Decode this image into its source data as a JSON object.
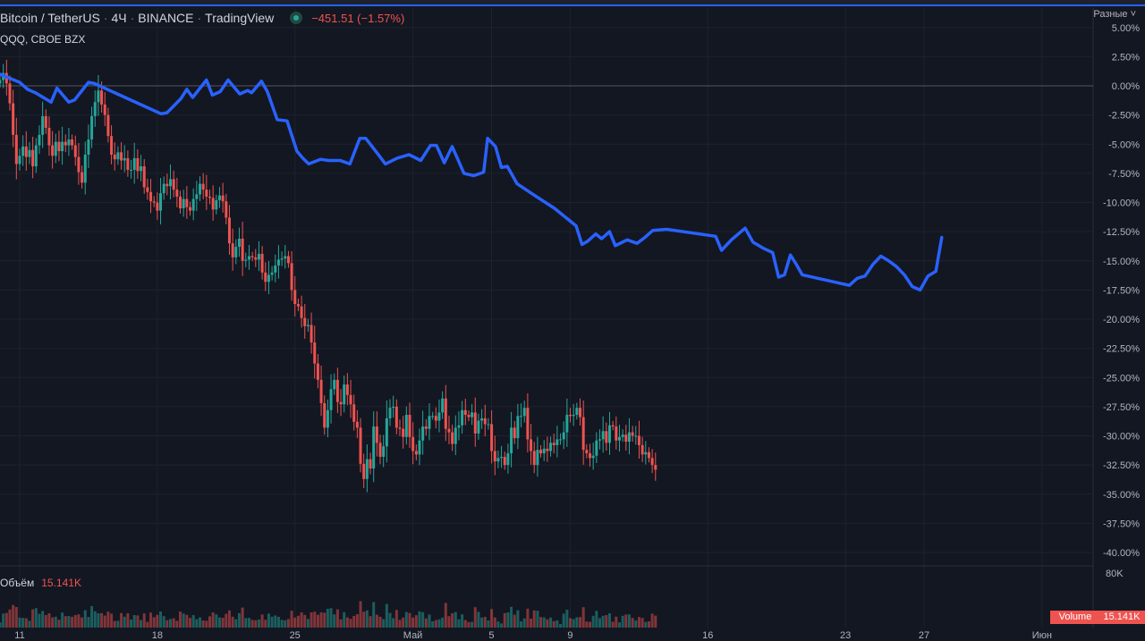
{
  "header": {
    "symbol": "Bitcoin / TetherUS",
    "interval": "4Ч",
    "exchange": "BINANCE",
    "source": "TradingView",
    "change": "−451.51 (−1.57%)",
    "compare": "QQQ, CBOE BZX",
    "scale_mode": "Разные ˅"
  },
  "volume": {
    "label": "Объём",
    "value": "15.141K",
    "pill_label": "Volume",
    "pill_value": "15.141K",
    "max_tick": "80K"
  },
  "colors": {
    "background": "#131722",
    "up": "#26a69a",
    "down": "#ef5350",
    "compare_line": "#2962ff",
    "grid": "#1e222d"
  },
  "chart_data": {
    "type": "line",
    "ylabel": "",
    "ylim": [
      -41,
      5.5
    ],
    "y_ticks": [
      "5.00%",
      "2.50%",
      "0.00%",
      "-2.50%",
      "-5.00%",
      "-7.50%",
      "-10.00%",
      "-12.50%",
      "-15.00%",
      "-17.50%",
      "-20.00%",
      "-22.50%",
      "-25.00%",
      "-27.50%",
      "-30.00%",
      "-32.50%",
      "-35.00%",
      "-37.50%",
      "-40.00%"
    ],
    "x_ticks": [
      "11",
      "18",
      "25",
      "Май",
      "5",
      "9",
      "16",
      "23",
      "27",
      "Июн"
    ],
    "x_tick_days": [
      11,
      18,
      25,
      31,
      35,
      39,
      46,
      53,
      57,
      63
    ],
    "x_range_days": [
      10,
      66
    ],
    "series": [
      {
        "name": "QQQ, CBOE BZX",
        "style": "line",
        "x": [
          10.0,
          11.0,
          11.4,
          11.8,
          12.6,
          12.9,
          13.5,
          13.8,
          14.5,
          14.8,
          18.2,
          18.5,
          19.2,
          19.5,
          19.8,
          20.5,
          20.8,
          21.2,
          21.6,
          22.2,
          22.6,
          22.8,
          23.3,
          23.6,
          24.1,
          24.6,
          25.1,
          25.4,
          25.7,
          26.3,
          26.7,
          27.3,
          27.8,
          28.3,
          28.6,
          29.2,
          29.6,
          30.2,
          30.8,
          31.4,
          31.9,
          32.2,
          32.6,
          33.0,
          33.6,
          34.1,
          34.6,
          34.8,
          35.2,
          35.5,
          35.8,
          36.3,
          37.2,
          38.2,
          39.3,
          39.6,
          39.9,
          40.3,
          40.6,
          41.0,
          41.3,
          41.9,
          42.4,
          42.8,
          43.2,
          43.9,
          46.4,
          46.7,
          47.2,
          47.9,
          48.3,
          48.8,
          49.3,
          49.6,
          49.9,
          50.2,
          50.5,
          50.8,
          53.2,
          53.6,
          54.0,
          54.4,
          54.8,
          55.2,
          55.6,
          56.0,
          56.4,
          56.8,
          57.2,
          57.6,
          57.9
        ]
      },
      {
        "name": "Bitcoin / TetherUS",
        "style": "candlestick",
        "x_start_day": 10.0,
        "candle_days": 0.1667,
        "closes": [
          0.5,
          1.1,
          0.2,
          -1.5,
          -4.2,
          -6.7,
          -6.0,
          -5.2,
          -6.1,
          -5.5,
          -6.9,
          -5.1,
          -4.2,
          -2.6,
          -3.6,
          -5.1,
          -6.0,
          -4.8,
          -5.6,
          -4.8,
          -5.1,
          -4.6,
          -5.1,
          -6.1,
          -7.4,
          -8.3,
          -5.9,
          -4.6,
          -2.6,
          -1.4,
          -0.4,
          -1.6,
          -2.5,
          -4.3,
          -5.9,
          -6.3,
          -5.7,
          -6.4,
          -6.2,
          -7.2,
          -7.2,
          -6.2,
          -7.3,
          -6.9,
          -8.7,
          -9.1,
          -9.9,
          -10.0,
          -10.7,
          -9.2,
          -8.4,
          -8.6,
          -8.0,
          -8.9,
          -9.5,
          -10.5,
          -9.7,
          -10.4,
          -10.7,
          -9.7,
          -9.3,
          -8.4,
          -8.9,
          -9.5,
          -9.6,
          -10.6,
          -9.8,
          -9.4,
          -9.9,
          -11.3,
          -13.5,
          -14.7,
          -13.8,
          -13.1,
          -15.0,
          -14.9,
          -14.6,
          -14.7,
          -14.9,
          -14.4,
          -16.0,
          -16.8,
          -16.2,
          -16.0,
          -15.4,
          -14.9,
          -14.8,
          -14.6,
          -15.2,
          -17.5,
          -18.7,
          -18.9,
          -19.9,
          -20.6,
          -20.5,
          -22.0,
          -23.8,
          -25.2,
          -27.2,
          -29.3,
          -27.8,
          -26.0,
          -25.2,
          -27.1,
          -27.3,
          -25.6,
          -26.5,
          -27.3,
          -28.8,
          -29.3,
          -32.4,
          -33.7,
          -32.0,
          -32.8,
          -29.2,
          -30.6,
          -31.8,
          -30.9,
          -28.5,
          -27.6,
          -27.5,
          -29.3,
          -29.4,
          -30.1,
          -28.2,
          -30.1,
          -31.3,
          -31.6,
          -30.4,
          -29.2,
          -29.4,
          -28.3,
          -28.3,
          -28.7,
          -28.0,
          -26.8,
          -29.4,
          -29.7,
          -30.7,
          -29.3,
          -29.1,
          -27.8,
          -28.2,
          -28.4,
          -28.0,
          -29.8,
          -28.7,
          -28.5,
          -29.0,
          -29.0,
          -31.3,
          -32.2,
          -31.9,
          -31.8,
          -32.5,
          -31.5,
          -29.3,
          -30.2,
          -28.3,
          -28.3,
          -27.6,
          -30.3,
          -31.3,
          -32.5,
          -31.2,
          -31.5,
          -31.1,
          -31.3,
          -30.6,
          -30.8,
          -30.3,
          -30.3,
          -29.7,
          -28.2,
          -28.3,
          -28.2,
          -27.6,
          -28.4,
          -31.2,
          -31.5,
          -31.9,
          -31.7,
          -30.4,
          -30.3,
          -29.6,
          -30.6,
          -29.1,
          -29.2,
          -30.4,
          -30.1,
          -29.9,
          -30.5,
          -29.7,
          -30.0,
          -30.0,
          -30.8,
          -31.6,
          -31.4,
          -31.9,
          -32.5,
          -32.9
        ]
      }
    ]
  }
}
